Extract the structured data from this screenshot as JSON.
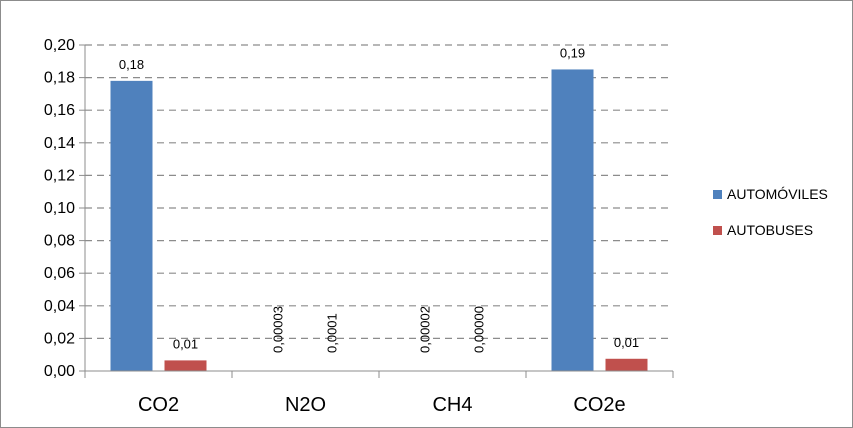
{
  "chart_data": {
    "type": "bar",
    "categories": [
      "CO2",
      "N2O",
      "CH4",
      "CO2e"
    ],
    "series": [
      {
        "name": "AUTOMÓVILES",
        "color": "#4f81bd",
        "values": [
          0.178,
          3e-05,
          2e-05,
          0.185
        ],
        "labels": [
          "0,18",
          "0,00003",
          "0,00002",
          "0,19"
        ]
      },
      {
        "name": "AUTOBUSES",
        "color": "#c0504d",
        "values": [
          0.0065,
          0.0001,
          0.0,
          0.0075
        ],
        "labels": [
          "0,01",
          "0,0001",
          "0,00000",
          "0,01"
        ]
      }
    ],
    "ylim": [
      0,
      0.2
    ],
    "yticks": [
      "0,00",
      "0,02",
      "0,04",
      "0,06",
      "0,08",
      "0,10",
      "0,12",
      "0,14",
      "0,16",
      "0,18",
      "0,20"
    ],
    "grid": true,
    "legend_position": "right"
  }
}
